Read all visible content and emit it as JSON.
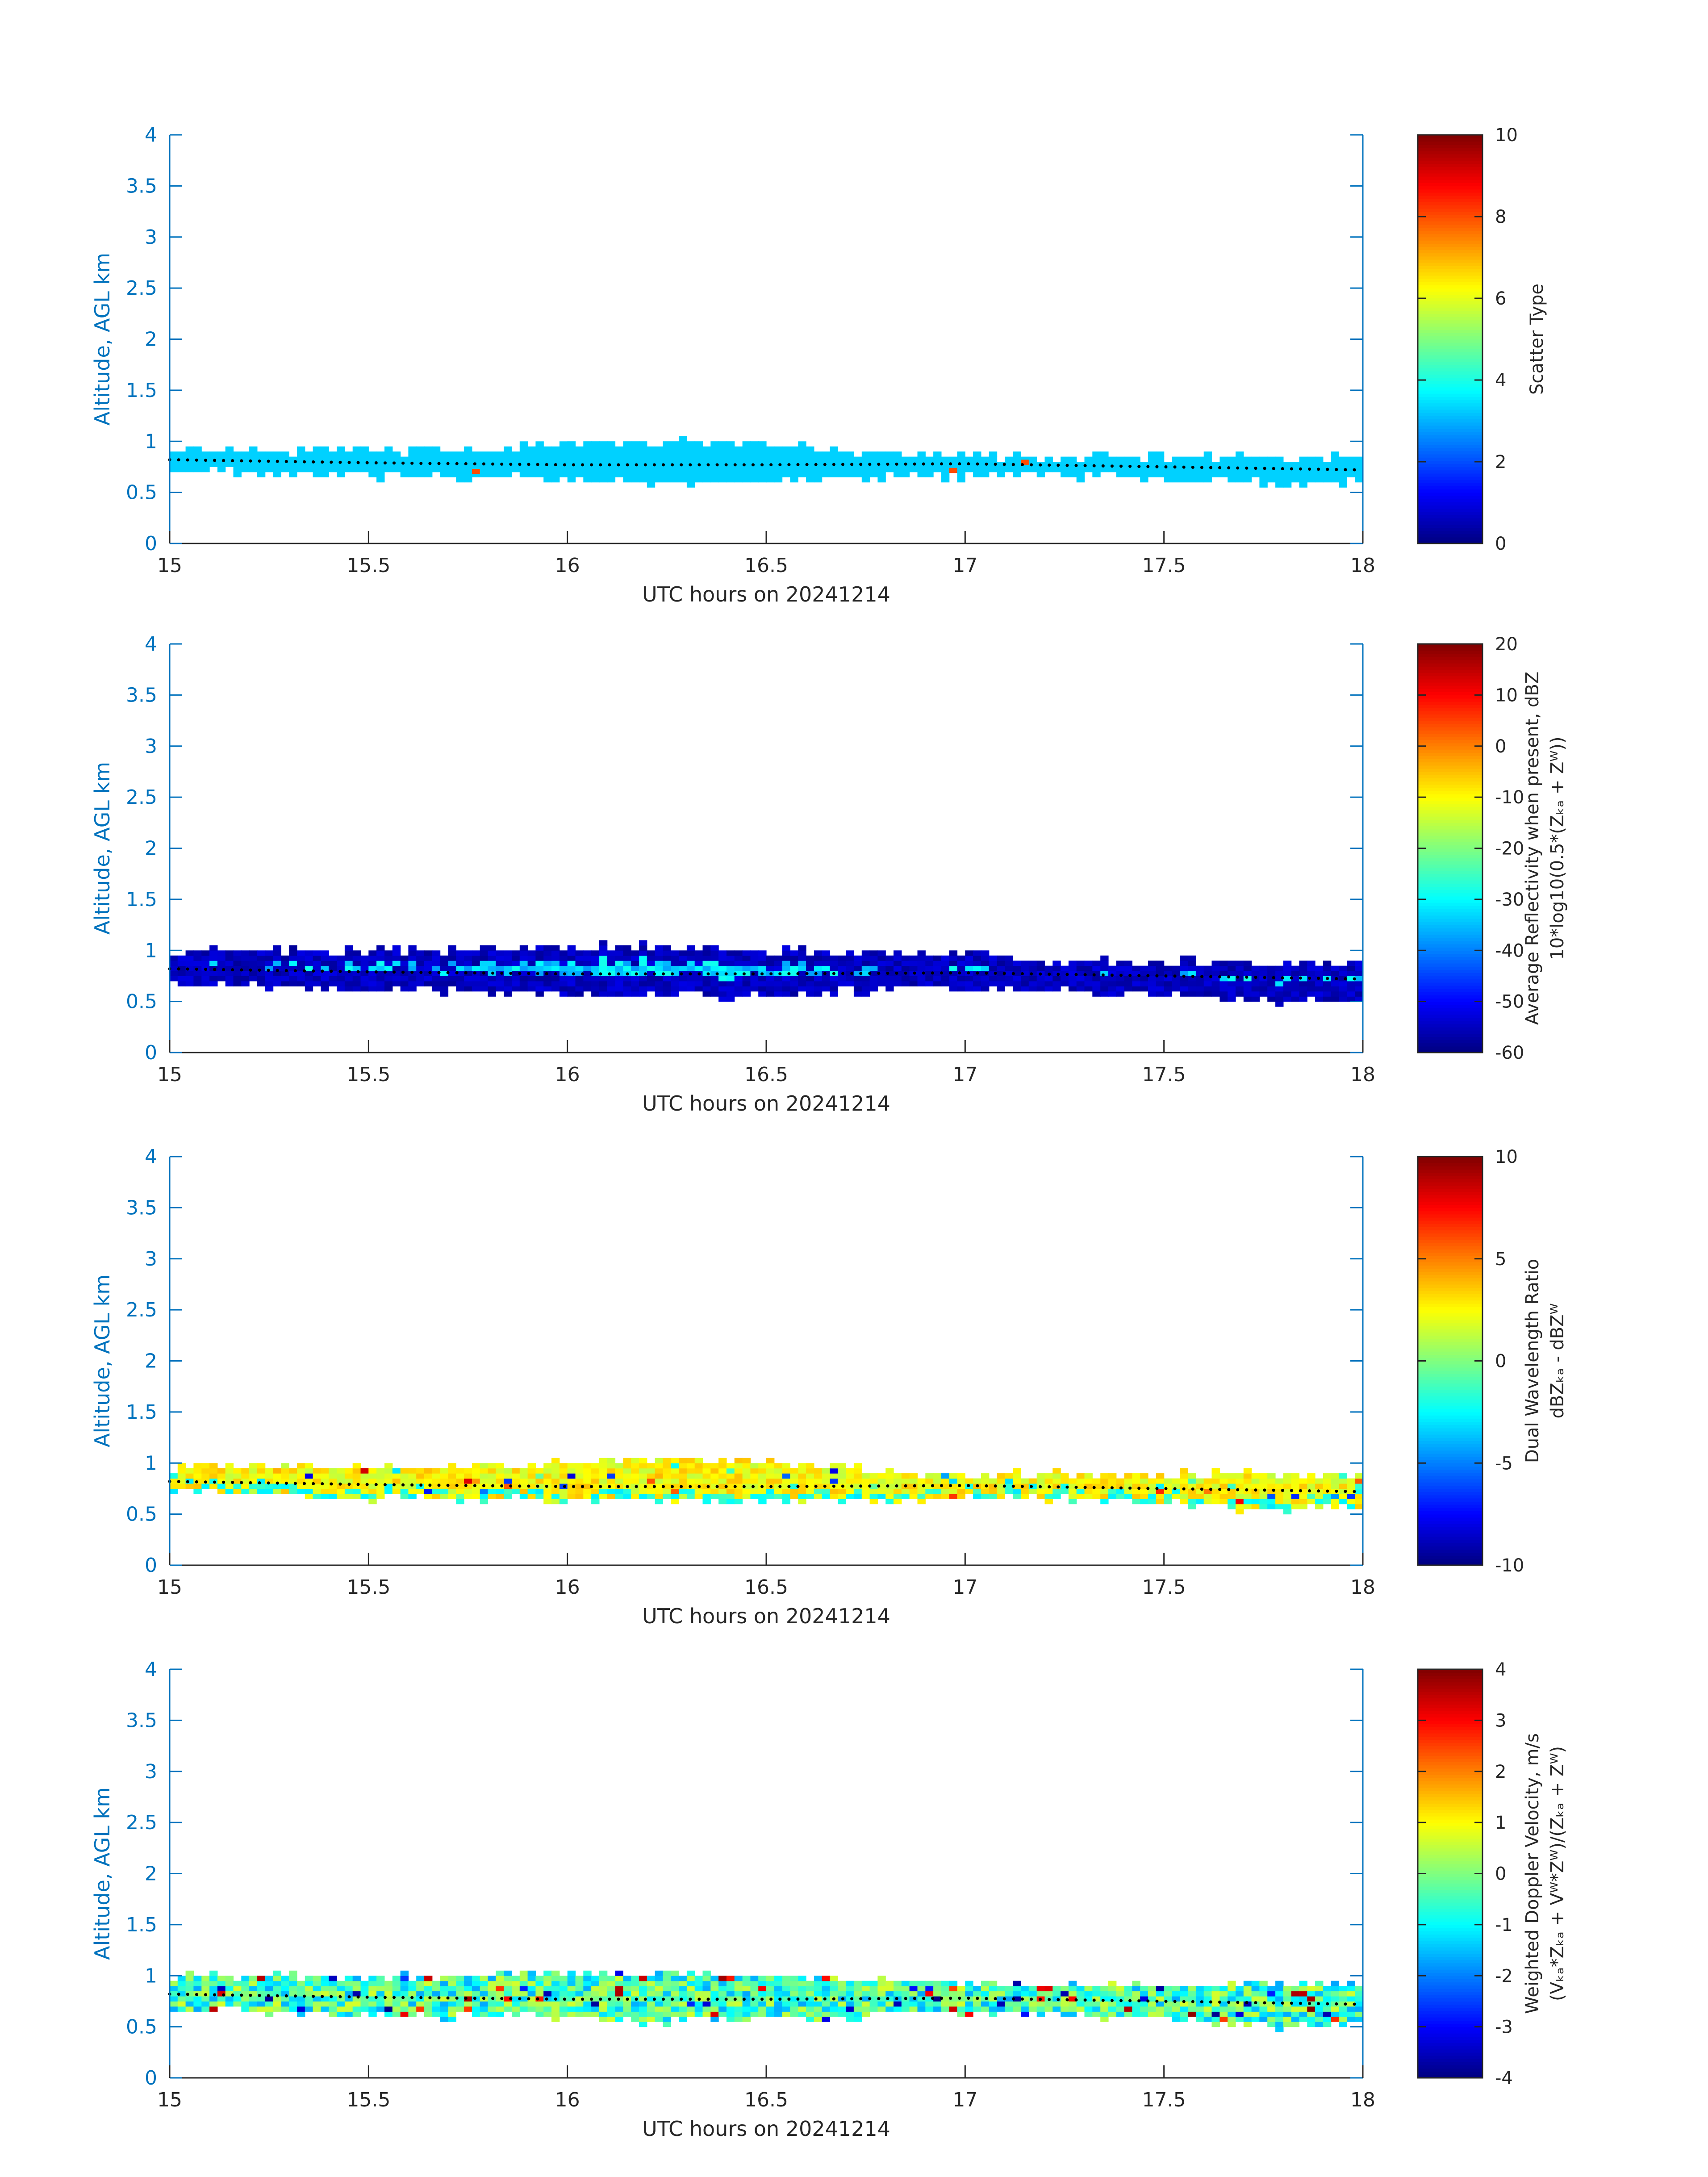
{
  "colors": {
    "axis_blue": "#0072BD",
    "tick_label_dark": "#262626",
    "colormap": "jet",
    "layer_line": "#000000"
  },
  "panels": [
    {
      "id": "scatter-type",
      "title": "",
      "xlabel": "UTC hours on 20241214",
      "ylabel": "Altitude, AGL km",
      "xticks": [
        "15",
        "15.5",
        "16",
        "16.5",
        "17",
        "17.5",
        "18"
      ],
      "yticks": [
        "0",
        "0.5",
        "1",
        "1.5",
        "2",
        "2.5",
        "3",
        "3.5",
        "4"
      ],
      "colorbar": {
        "label_lines": [
          "Scatter Type"
        ],
        "ticks": [
          "0",
          "2",
          "4",
          "6",
          "8",
          "10"
        ]
      }
    },
    {
      "id": "reflectivity",
      "title": "",
      "xlabel": "UTC hours on 20241214",
      "ylabel": "Altitude, AGL km",
      "xticks": [
        "15",
        "15.5",
        "16",
        "16.5",
        "17",
        "17.5",
        "18"
      ],
      "yticks": [
        "0",
        "0.5",
        "1",
        "1.5",
        "2",
        "2.5",
        "3",
        "3.5",
        "4"
      ],
      "colorbar": {
        "label_lines": [
          "Average Reflectivity when present, dBZ",
          "10*log10(0.5*(Zₖₐ + Zᵂ))"
        ],
        "ticks": [
          "-60",
          "-50",
          "-40",
          "-30",
          "-20",
          "-10",
          "0",
          "10",
          "20"
        ]
      }
    },
    {
      "id": "dwr",
      "title": "",
      "xlabel": "UTC hours on 20241214",
      "ylabel": "Altitude, AGL km",
      "xticks": [
        "15",
        "15.5",
        "16",
        "16.5",
        "17",
        "17.5",
        "18"
      ],
      "yticks": [
        "0",
        "0.5",
        "1",
        "1.5",
        "2",
        "2.5",
        "3",
        "3.5",
        "4"
      ],
      "colorbar": {
        "label_lines": [
          "Dual Wavelength Ratio",
          "dBZₖₐ - dBZᵂ"
        ],
        "ticks": [
          "-10",
          "-5",
          "0",
          "5",
          "10"
        ]
      }
    },
    {
      "id": "doppler",
      "title": "",
      "xlabel": "UTC hours on 20241214",
      "ylabel": "Altitude, AGL km",
      "xticks": [
        "15",
        "15.5",
        "16",
        "16.5",
        "17",
        "17.5",
        "18"
      ],
      "yticks": [
        "0",
        "0.5",
        "1",
        "1.5",
        "2",
        "2.5",
        "3",
        "3.5",
        "4"
      ],
      "colorbar": {
        "label_lines": [
          "Weighted Doppler Velocity, m/s",
          "(Vₖₐ*Zₖₐ + Vᵂ*Zᵂ)/(Zₖₐ + Zᵂ)"
        ],
        "ticks": [
          "-4",
          "-3",
          "-2",
          "-1",
          "0",
          "1",
          "2",
          "3",
          "4"
        ]
      }
    }
  ],
  "chart_data": [
    {
      "type": "heatmap",
      "title": "",
      "xlabel": "UTC hours on 20241214",
      "ylabel": "Altitude, AGL km",
      "xlim": [
        15,
        18
      ],
      "ylim": [
        0,
        4
      ],
      "colorbar_label": "Scatter Type",
      "clim": [
        0,
        10
      ],
      "layer": {
        "x": [
          15.0,
          15.5,
          16.0,
          16.2,
          16.5,
          16.8,
          17.0,
          17.2,
          17.5,
          17.8,
          18.0
        ],
        "top": [
          0.93,
          0.9,
          0.96,
          1.0,
          0.98,
          0.88,
          0.86,
          0.84,
          0.86,
          0.85,
          0.86
        ],
        "bottom": [
          0.72,
          0.66,
          0.63,
          0.6,
          0.6,
          0.65,
          0.66,
          0.67,
          0.62,
          0.58,
          0.6
        ]
      },
      "dominant_value": 3.3,
      "outliers": [
        {
          "x": 15.76,
          "y": 0.68,
          "value": 8
        },
        {
          "x": 16.96,
          "y": 0.69,
          "value": 8
        },
        {
          "x": 17.14,
          "y": 0.77,
          "value": 8
        }
      ],
      "cloud_base": {
        "x": [
          15.0,
          15.5,
          16.0,
          16.5,
          17.0,
          17.5,
          18.0
        ],
        "y": [
          0.82,
          0.79,
          0.77,
          0.77,
          0.78,
          0.75,
          0.72
        ]
      }
    },
    {
      "type": "heatmap",
      "title": "",
      "xlabel": "UTC hours on 20241214",
      "ylabel": "Altitude, AGL km",
      "xlim": [
        15,
        18
      ],
      "ylim": [
        0,
        4
      ],
      "colorbar_label": "Average Reflectivity when present, dBZ",
      "clim": [
        -60,
        20
      ],
      "layer": {
        "x": [
          15.0,
          15.5,
          16.0,
          16.2,
          16.5,
          16.8,
          17.0,
          17.2,
          17.5,
          17.8,
          18.0
        ],
        "top": [
          1.0,
          1.0,
          1.03,
          1.05,
          1.0,
          0.98,
          0.98,
          0.88,
          0.9,
          0.88,
          0.88
        ],
        "bottom": [
          0.68,
          0.62,
          0.58,
          0.56,
          0.56,
          0.62,
          0.62,
          0.62,
          0.56,
          0.5,
          0.55
        ]
      },
      "core_value": -33,
      "edge_value": -55,
      "cloud_base": {
        "x": [
          15.0,
          15.5,
          16.0,
          16.5,
          17.0,
          17.5,
          18.0
        ],
        "y": [
          0.82,
          0.79,
          0.77,
          0.77,
          0.78,
          0.75,
          0.72
        ]
      }
    },
    {
      "type": "heatmap",
      "title": "",
      "xlabel": "UTC hours on 20241214",
      "ylabel": "Altitude, AGL km",
      "xlim": [
        15,
        18
      ],
      "ylim": [
        0,
        4
      ],
      "colorbar_label": "Dual Wavelength Ratio",
      "clim": [
        -10,
        10
      ],
      "layer": {
        "x": [
          15.0,
          15.5,
          16.0,
          16.2,
          16.5,
          16.8,
          17.0,
          17.2,
          17.5,
          17.8,
          18.0
        ],
        "top": [
          0.96,
          0.96,
          1.0,
          1.05,
          1.0,
          0.92,
          0.88,
          0.9,
          0.9,
          0.9,
          0.88
        ],
        "bottom": [
          0.72,
          0.66,
          0.64,
          0.62,
          0.62,
          0.62,
          0.66,
          0.66,
          0.6,
          0.52,
          0.58
        ]
      },
      "dominant_value": 2.5,
      "cloud_base": {
        "x": [
          15.0,
          15.5,
          16.0,
          16.5,
          17.0,
          17.5,
          18.0
        ],
        "y": [
          0.82,
          0.79,
          0.77,
          0.77,
          0.78,
          0.75,
          0.72
        ]
      }
    },
    {
      "type": "heatmap",
      "title": "",
      "xlabel": "UTC hours on 20241214",
      "ylabel": "Altitude, AGL km",
      "xlim": [
        15,
        18
      ],
      "ylim": [
        0,
        4
      ],
      "colorbar_label": "Weighted Doppler Velocity, m/s",
      "clim": [
        -4,
        4
      ],
      "layer": {
        "x": [
          15.0,
          15.5,
          16.0,
          16.2,
          16.5,
          16.8,
          17.0,
          17.2,
          17.5,
          17.8,
          18.0
        ],
        "top": [
          1.0,
          0.98,
          1.04,
          1.05,
          1.0,
          0.96,
          0.94,
          0.9,
          0.92,
          0.92,
          0.92
        ],
        "bottom": [
          0.68,
          0.62,
          0.58,
          0.55,
          0.56,
          0.62,
          0.62,
          0.64,
          0.56,
          0.5,
          0.55
        ]
      },
      "dominant_value": -0.5,
      "cloud_base": {
        "x": [
          15.0,
          15.5,
          16.0,
          16.5,
          17.0,
          17.5,
          18.0
        ],
        "y": [
          0.82,
          0.79,
          0.77,
          0.77,
          0.78,
          0.75,
          0.72
        ]
      }
    }
  ]
}
